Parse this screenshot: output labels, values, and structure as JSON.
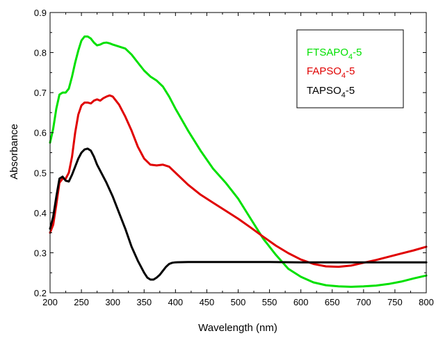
{
  "chart_data": {
    "type": "line",
    "title": "",
    "xlabel": "Wavelength (nm)",
    "ylabel": "Absorbance",
    "xlim": [
      200,
      800
    ],
    "ylim": [
      0.2,
      0.9
    ],
    "x_ticks": [
      200,
      250,
      300,
      350,
      400,
      450,
      500,
      550,
      600,
      650,
      700,
      750,
      800
    ],
    "y_ticks": [
      0.2,
      0.3,
      0.4,
      0.5,
      0.6,
      0.7,
      0.8,
      0.9
    ],
    "x_tick_labels": [
      "200",
      "250",
      "300",
      "350",
      "400",
      "450",
      "500",
      "550",
      "600",
      "650",
      "700",
      "750",
      "800"
    ],
    "y_tick_labels": [
      "0.2",
      "0.3",
      "0.4",
      "0.5",
      "0.6",
      "0.7",
      "0.8",
      "0.9"
    ],
    "grid": false,
    "legend_position": "top-right",
    "series": [
      {
        "name": "FTSAPO4-5",
        "name_main": "FTSAPO",
        "name_sub": "4",
        "name_suffix": "-5",
        "color": "#00e000",
        "x": [
          200,
          205,
          210,
          215,
          220,
          225,
          230,
          235,
          240,
          245,
          250,
          255,
          260,
          265,
          270,
          275,
          280,
          285,
          290,
          295,
          300,
          310,
          320,
          330,
          340,
          350,
          360,
          370,
          380,
          390,
          400,
          420,
          440,
          460,
          480,
          500,
          520,
          540,
          560,
          580,
          600,
          620,
          640,
          660,
          680,
          700,
          720,
          740,
          760,
          780,
          800
        ],
        "y": [
          0.575,
          0.61,
          0.66,
          0.695,
          0.7,
          0.7,
          0.71,
          0.74,
          0.775,
          0.805,
          0.83,
          0.84,
          0.84,
          0.835,
          0.825,
          0.818,
          0.82,
          0.824,
          0.825,
          0.823,
          0.82,
          0.815,
          0.81,
          0.795,
          0.775,
          0.755,
          0.74,
          0.73,
          0.715,
          0.69,
          0.66,
          0.605,
          0.555,
          0.51,
          0.475,
          0.435,
          0.385,
          0.335,
          0.295,
          0.26,
          0.24,
          0.226,
          0.219,
          0.216,
          0.215,
          0.216,
          0.218,
          0.222,
          0.228,
          0.236,
          0.243
        ]
      },
      {
        "name": "FAPSO4-5",
        "name_main": "FAPSO",
        "name_sub": "4",
        "name_suffix": "-5",
        "color": "#e00000",
        "x": [
          200,
          205,
          210,
          215,
          220,
          225,
          230,
          235,
          240,
          245,
          250,
          255,
          260,
          265,
          270,
          275,
          280,
          285,
          290,
          295,
          300,
          310,
          320,
          330,
          340,
          350,
          360,
          370,
          380,
          390,
          400,
          420,
          440,
          460,
          480,
          500,
          520,
          540,
          560,
          580,
          600,
          620,
          640,
          660,
          680,
          700,
          720,
          740,
          760,
          780,
          800
        ],
        "y": [
          0.35,
          0.37,
          0.42,
          0.475,
          0.485,
          0.485,
          0.5,
          0.54,
          0.6,
          0.645,
          0.668,
          0.675,
          0.675,
          0.673,
          0.68,
          0.683,
          0.68,
          0.686,
          0.69,
          0.693,
          0.69,
          0.67,
          0.64,
          0.605,
          0.565,
          0.535,
          0.52,
          0.518,
          0.52,
          0.515,
          0.5,
          0.47,
          0.445,
          0.425,
          0.405,
          0.385,
          0.363,
          0.34,
          0.318,
          0.299,
          0.283,
          0.272,
          0.266,
          0.265,
          0.268,
          0.275,
          0.282,
          0.29,
          0.298,
          0.306,
          0.315
        ]
      },
      {
        "name": "TAPSO4-5",
        "name_main": "TAPSO",
        "name_sub": "4",
        "name_suffix": "-5",
        "color": "#000000",
        "x": [
          200,
          205,
          210,
          215,
          220,
          225,
          230,
          235,
          240,
          245,
          250,
          255,
          260,
          265,
          270,
          275,
          280,
          290,
          300,
          310,
          320,
          330,
          340,
          350,
          355,
          360,
          365,
          370,
          375,
          380,
          385,
          390,
          395,
          400,
          420,
          450,
          500,
          550,
          600,
          650,
          700,
          750,
          800
        ],
        "y": [
          0.36,
          0.39,
          0.44,
          0.485,
          0.49,
          0.48,
          0.478,
          0.495,
          0.515,
          0.535,
          0.55,
          0.558,
          0.56,
          0.555,
          0.54,
          0.52,
          0.505,
          0.475,
          0.44,
          0.4,
          0.36,
          0.315,
          0.28,
          0.25,
          0.238,
          0.233,
          0.233,
          0.238,
          0.245,
          0.255,
          0.265,
          0.272,
          0.275,
          0.276,
          0.277,
          0.277,
          0.277,
          0.277,
          0.276,
          0.276,
          0.276,
          0.276,
          0.276
        ]
      }
    ]
  }
}
